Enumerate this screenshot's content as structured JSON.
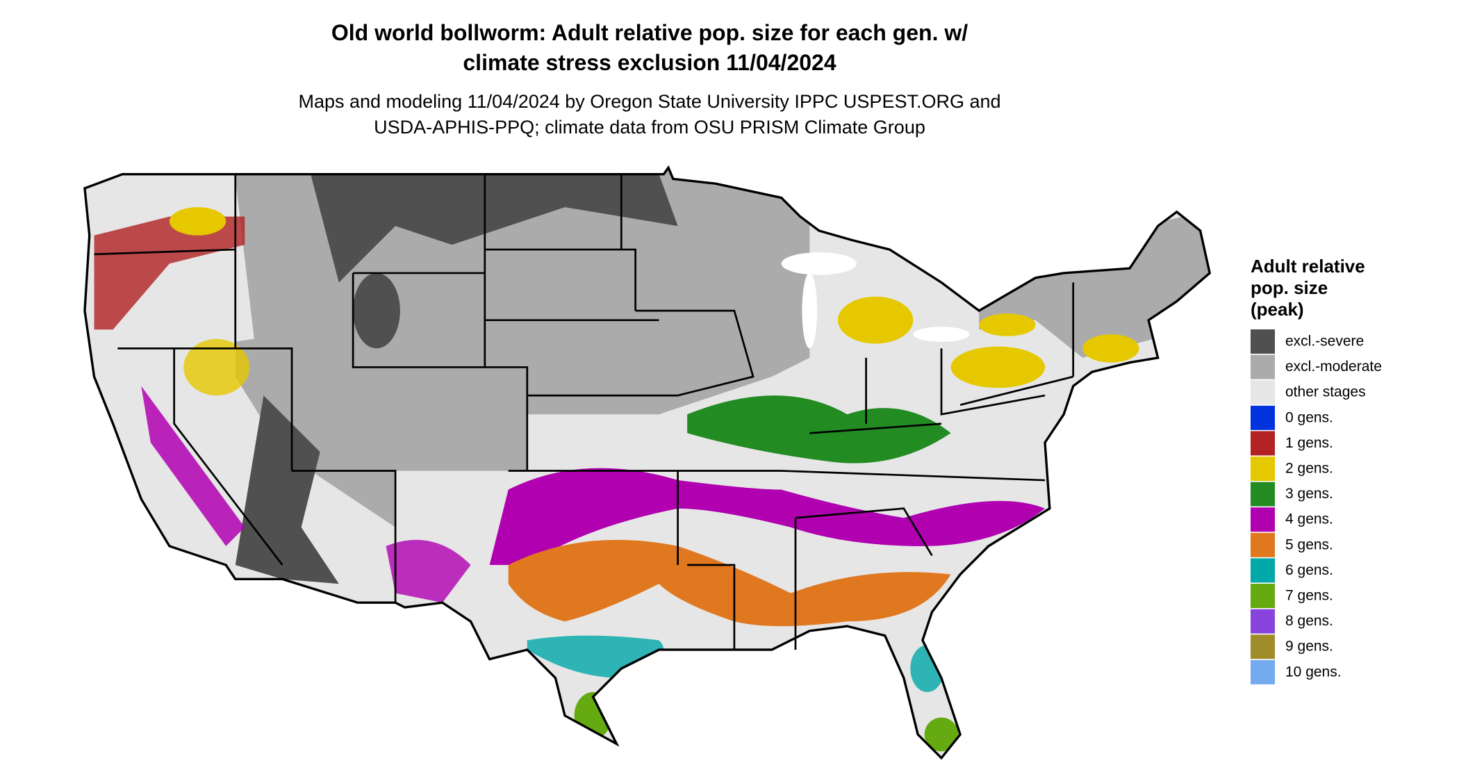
{
  "header": {
    "title": [
      "Old world bollworm: Adult relative pop. size for each gen. w/",
      "climate stress exclusion 11/04/2024"
    ],
    "subtitle": [
      "Maps and modeling 11/04/2024 by Oregon State University IPPC USPEST.ORG and",
      "USDA-APHIS-PPQ; climate data from OSU PRISM Climate Group"
    ]
  },
  "legend": {
    "title": [
      "Adult relative",
      "pop. size",
      "(peak)"
    ],
    "items": [
      {
        "label": "excl.-severe",
        "color": "#505050"
      },
      {
        "label": "excl.-moderate",
        "color": "#ababab"
      },
      {
        "label": "other stages",
        "color": "#e6e6e6"
      },
      {
        "label": "0 gens.",
        "color": "#0033dd"
      },
      {
        "label": "1 gens.",
        "color": "#b22222"
      },
      {
        "label": "2 gens.",
        "color": "#e6c800"
      },
      {
        "label": "3 gens.",
        "color": "#228b22"
      },
      {
        "label": "4 gens.",
        "color": "#b000b0"
      },
      {
        "label": "5 gens.",
        "color": "#e07820"
      },
      {
        "label": "6 gens.",
        "color": "#00a8a8"
      },
      {
        "label": "7 gens.",
        "color": "#66aa11"
      },
      {
        "label": "8 gens.",
        "color": "#8844dd"
      },
      {
        "label": "9 gens.",
        "color": "#a08c28"
      },
      {
        "label": "10 gens.",
        "color": "#74aaf0"
      }
    ]
  }
}
